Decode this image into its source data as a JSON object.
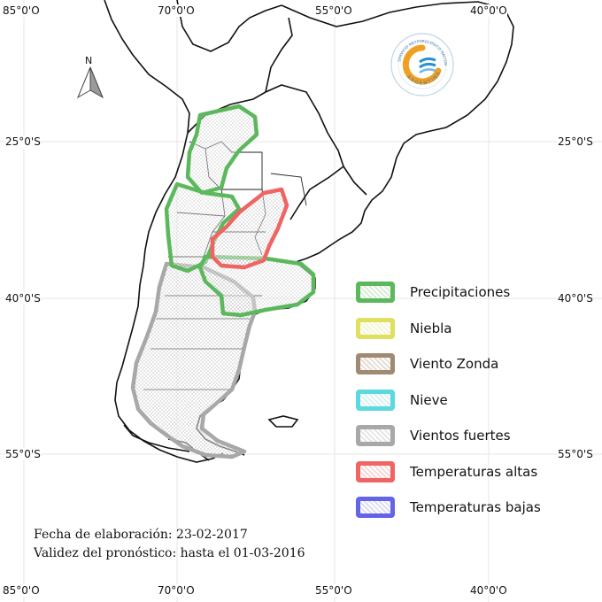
{
  "map": {
    "longitude_labels": [
      "85°0'O",
      "70°0'O",
      "55°0'O",
      "40°0'O"
    ],
    "latitude_labels": [
      "25°0'S",
      "40°0'S",
      "55°0'S"
    ]
  },
  "north_arrow": {
    "letter": "N"
  },
  "logo": {
    "text": "SERVICIO METEOROLOGICO NACIONAL",
    "country": "ARGENTINA"
  },
  "legend": {
    "items": [
      {
        "label": "Precipitaciones",
        "color": "#5cb85c",
        "fill": "#d8ecd5"
      },
      {
        "label": "Niebla",
        "color": "#e0e060",
        "fill": "#f6f6d4"
      },
      {
        "label": "Viento Zonda",
        "color": "#a08a72",
        "fill": "#e6ddd4"
      },
      {
        "label": "Nieve",
        "color": "#5cd8e0",
        "fill": "#d8f2f4"
      },
      {
        "label": "Vientos fuertes",
        "color": "#a8a8a8",
        "fill": "#e6e6e6"
      },
      {
        "label": "Temperaturas altas",
        "color": "#f06464",
        "fill": "#f8d8d8"
      },
      {
        "label": "Temperaturas bajas",
        "color": "#6464e8",
        "fill": "#dcdcf6"
      }
    ]
  },
  "footer": {
    "line1": "Fecha de elaboración: 23-02-2017",
    "line2": "Validez del pronóstico: hasta el 01-03-2016"
  }
}
